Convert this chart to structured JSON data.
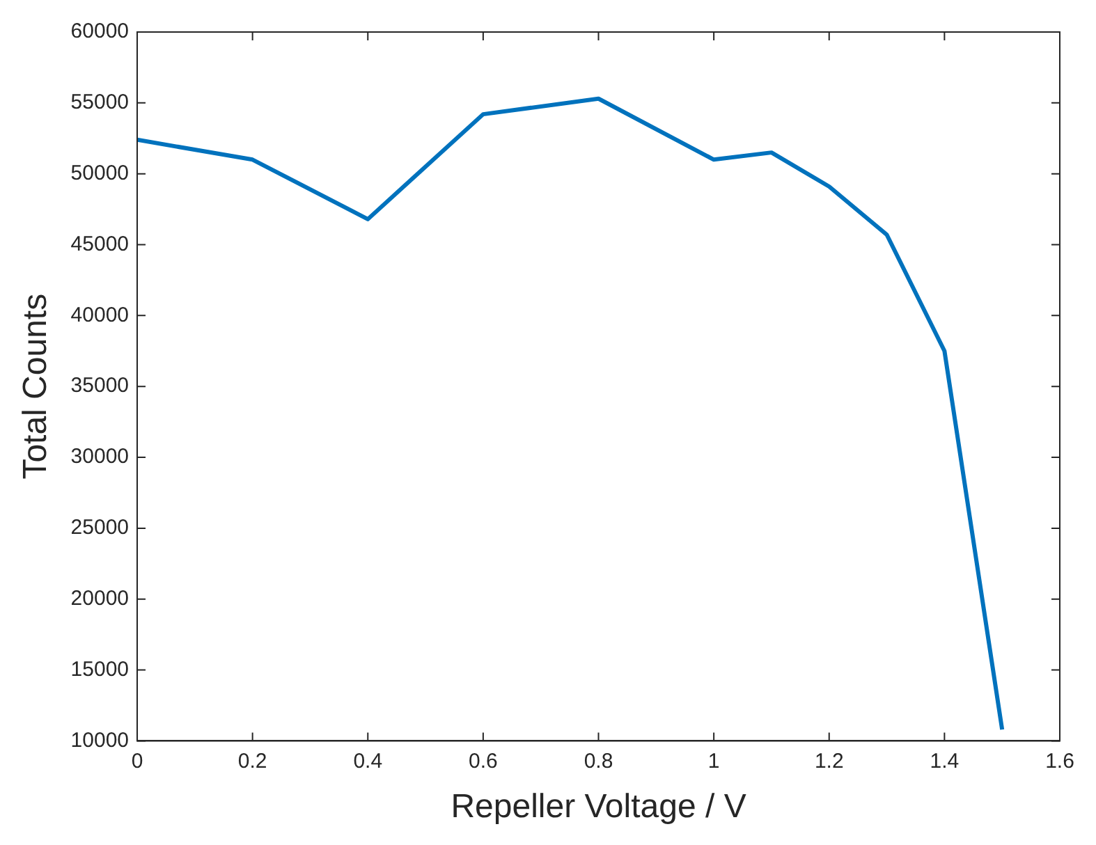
{
  "chart_data": {
    "type": "line",
    "xlabel": "Repeller Voltage / V",
    "ylabel": "Total Counts",
    "x": [
      0,
      0.2,
      0.4,
      0.6,
      0.8,
      1,
      1.1,
      1.2,
      1.3,
      1.4,
      1.5
    ],
    "series": [
      {
        "color": "#0072bd",
        "values": [
          52400,
          51000,
          46800,
          54200,
          55300,
          51000,
          51500,
          49100,
          45700,
          37500,
          10800
        ]
      }
    ],
    "xlim": [
      0,
      1.6
    ],
    "xticks": [
      0,
      0.2,
      0.4,
      0.6,
      0.8,
      1,
      1.2,
      1.4,
      1.6
    ],
    "ylim": [
      10000,
      60000
    ],
    "yticks": [
      10000,
      15000,
      20000,
      25000,
      30000,
      35000,
      40000,
      45000,
      50000,
      55000,
      60000
    ],
    "grid": false,
    "legend": false,
    "marker": "none",
    "line_style": "solid"
  }
}
